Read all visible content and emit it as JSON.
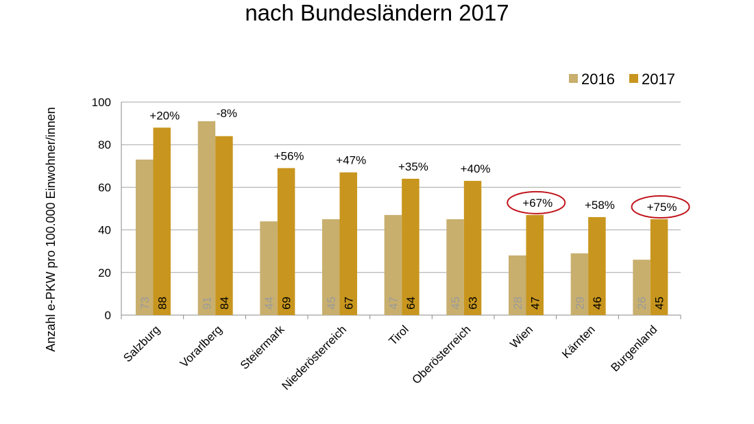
{
  "chart_data": {
    "type": "bar",
    "title": "nach Bundesländern 2017",
    "xlabel": "",
    "ylabel": "Anzahl e-PKW pro 100.000 Einwohner/innen",
    "ylim": [
      0,
      100
    ],
    "yticks": [
      0,
      20,
      40,
      60,
      80,
      100
    ],
    "grid": true,
    "legend_position": "top-right",
    "categories": [
      "Salzburg",
      "Vorarlberg",
      "Steiermark",
      "Niederösterreich",
      "Tirol",
      "Oberösterreich",
      "Wien",
      "Kärnten",
      "Burgenland"
    ],
    "series": [
      {
        "name": "2016",
        "color": "#C8AF6E",
        "label_color": "#9a9a9a",
        "values": [
          73,
          91,
          44,
          45,
          47,
          45,
          28,
          29,
          26
        ]
      },
      {
        "name": "2017",
        "color": "#C8961E",
        "label_color": "#000000",
        "values": [
          88,
          84,
          69,
          67,
          64,
          63,
          47,
          46,
          45
        ]
      }
    ],
    "change_labels": [
      "+20%",
      "-8%",
      "+56%",
      "+47%",
      "+35%",
      "+40%",
      "+67%",
      "+58%",
      "+75%"
    ],
    "highlighted_changes": [
      "Wien",
      "Burgenland"
    ],
    "highlight_color": "#C0141C"
  }
}
